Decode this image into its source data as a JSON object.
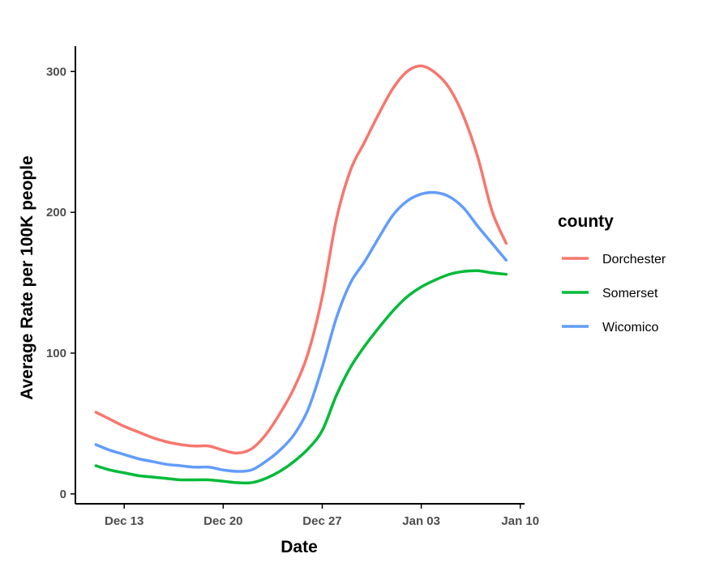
{
  "chart_data": {
    "type": "line",
    "title": "",
    "xlabel": "Date",
    "ylabel": "Average Rate per 100K people",
    "x_unit": "days relative to Dec 13",
    "x_ticks": [
      {
        "value": 0,
        "label": "Dec 13"
      },
      {
        "value": 7,
        "label": "Dec 20"
      },
      {
        "value": 14,
        "label": "Dec 27"
      },
      {
        "value": 21,
        "label": "Jan 03"
      },
      {
        "value": 28,
        "label": "Jan 10"
      }
    ],
    "y_ticks": [
      {
        "value": 0,
        "label": "0"
      },
      {
        "value": 100,
        "label": "100"
      },
      {
        "value": 200,
        "label": "200"
      },
      {
        "value": 300,
        "label": "300"
      }
    ],
    "xlim": [
      -3.45,
      28.3
    ],
    "ylim": [
      -7,
      318
    ],
    "grid": false,
    "x": [
      -2,
      -1,
      0,
      1,
      2,
      3,
      4,
      5,
      6,
      7,
      8,
      9,
      10,
      11,
      12,
      13,
      14,
      15,
      16,
      17,
      18,
      19,
      20,
      21,
      22,
      23,
      24,
      25,
      26,
      27
    ],
    "legend": {
      "title": "county",
      "placement": "right"
    },
    "series": [
      {
        "name": "Dorchester",
        "color": "#F8766D",
        "values": [
          58,
          53,
          48,
          44,
          40,
          37,
          35,
          34,
          34,
          31,
          29,
          32,
          42,
          57,
          75,
          100,
          140,
          195,
          230,
          250,
          270,
          288,
          300,
          304,
          299,
          288,
          268,
          239,
          201,
          178
        ]
      },
      {
        "name": "Somerset",
        "color": "#00BA38",
        "values": [
          20,
          17,
          15,
          13,
          12,
          11,
          10,
          10,
          10,
          9,
          8,
          8,
          11,
          16,
          23,
          32,
          45,
          70,
          90,
          105,
          118,
          130,
          140,
          147,
          152,
          156,
          158,
          158.5,
          157,
          156
        ]
      },
      {
        "name": "Wicomico",
        "color": "#619CFF",
        "values": [
          35,
          31,
          28,
          25,
          23,
          21,
          20,
          19,
          19,
          17,
          16,
          17,
          23,
          31,
          42,
          60,
          90,
          125,
          150,
          165,
          182,
          198,
          208,
          213,
          214,
          211,
          203,
          190,
          178,
          166
        ]
      }
    ]
  }
}
